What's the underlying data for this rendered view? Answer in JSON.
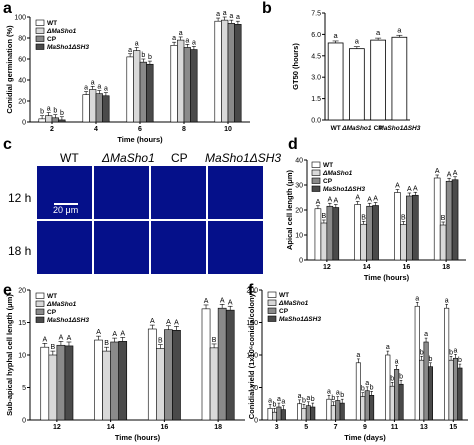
{
  "panel_labels": {
    "a": "a",
    "b": "b",
    "c": "c",
    "d": "d",
    "e": "e",
    "f": "f"
  },
  "micrograph_panel": {
    "columns": [
      "WT",
      "ΔMaSho1",
      "CP",
      "MaSho1ΔSH3"
    ],
    "rows": [
      "12 h",
      "18 h"
    ],
    "scale_bar": "20 μm"
  },
  "series_style": {
    "names": [
      "WT",
      "ΔMaSho1",
      "CP",
      "MaSho1ΔSH3"
    ],
    "fills": [
      "#ffffff",
      "#d9d9d9",
      "#8a8a8a",
      "#4a4a4a"
    ]
  },
  "chart_data": [
    {
      "id": "a",
      "type": "bar",
      "categories": [
        "2",
        "4",
        "6",
        "8",
        "10"
      ],
      "series": [
        {
          "name": "WT",
          "values": [
            3,
            26,
            62,
            73,
            96
          ]
        },
        {
          "name": "ΔMaSho1",
          "values": [
            6,
            31,
            68,
            78,
            97
          ]
        },
        {
          "name": "CP",
          "values": [
            4,
            27,
            57,
            71,
            94
          ]
        },
        {
          "name": "MaSho1ΔSH3",
          "values": [
            2,
            25,
            55,
            69,
            93
          ]
        }
      ],
      "letters": [
        [
          "b",
          "a",
          "a",
          "a",
          "a"
        ],
        [
          "a",
          "a",
          "a",
          "a",
          "a"
        ],
        [
          "b",
          "a",
          "b",
          "a",
          "a"
        ],
        [
          "b",
          "a",
          "b",
          "a",
          "a"
        ]
      ],
      "xlabel": "Time (hours)",
      "ylabel": "Conidial germination (%)",
      "ylim": [
        0,
        100
      ],
      "yticks": [
        0,
        20,
        40,
        60,
        80,
        100
      ],
      "legend": "top-left"
    },
    {
      "id": "b",
      "type": "bar",
      "categories": [
        "WT",
        "ΔMaSho1",
        "CP",
        "MaSho1ΔSH3"
      ],
      "values": [
        5.4,
        5.0,
        5.6,
        5.8
      ],
      "letters": [
        "a",
        "a",
        "a",
        "a"
      ],
      "xlabel": "",
      "ylabel": "GT50 (hours)",
      "ylim": [
        0,
        7.5
      ],
      "yticks": [
        0.0,
        1.5,
        3.0,
        4.5,
        6.0,
        7.5
      ]
    },
    {
      "id": "d",
      "type": "bar",
      "categories": [
        "12",
        "14",
        "16",
        "18"
      ],
      "series": [
        {
          "name": "WT",
          "values": [
            20.5,
            22.2,
            27.0,
            32.8
          ]
        },
        {
          "name": "ΔMaSho1",
          "values": [
            14.8,
            14.3,
            14.2,
            14.0
          ]
        },
        {
          "name": "CP",
          "values": [
            21.5,
            21.5,
            25.6,
            31.5
          ]
        },
        {
          "name": "MaSho1ΔSH3",
          "values": [
            21.0,
            21.8,
            25.9,
            32.1
          ]
        }
      ],
      "letters": [
        [
          "A",
          "A",
          "A",
          "A"
        ],
        [
          "B",
          "B",
          "B",
          "B"
        ],
        [
          "A",
          "A",
          "A",
          "A"
        ],
        [
          "A",
          "A",
          "A",
          "A"
        ]
      ],
      "xlabel": "Time (hours)",
      "ylabel": "Apical cell length (μm)",
      "ylim": [
        0,
        40
      ],
      "yticks": [
        0,
        10,
        20,
        30,
        40
      ],
      "legend": "top-left"
    },
    {
      "id": "e",
      "type": "bar",
      "categories": [
        "12",
        "14",
        "16",
        "18"
      ],
      "series": [
        {
          "name": "WT",
          "values": [
            11.2,
            12.3,
            14.0,
            17.1
          ]
        },
        {
          "name": "ΔMaSho1",
          "values": [
            10.0,
            10.6,
            11.0,
            11.1
          ]
        },
        {
          "name": "CP",
          "values": [
            11.5,
            12.0,
            13.9,
            17.2
          ]
        },
        {
          "name": "MaSho1ΔSH3",
          "values": [
            11.4,
            12.1,
            13.8,
            16.9
          ]
        }
      ],
      "letters": [
        [
          "A",
          "A",
          "A",
          "A"
        ],
        [
          "B",
          "B",
          "B",
          "B"
        ],
        [
          "A",
          "A",
          "A",
          "A"
        ],
        [
          "A",
          "A",
          "A",
          "A"
        ]
      ],
      "xlabel": "Time (hours)",
      "ylabel": "Sub-apical hyphal cell length (μm)",
      "ylim": [
        0,
        20
      ],
      "yticks": [
        0,
        5,
        10,
        15,
        20
      ],
      "legend": "top-left"
    },
    {
      "id": "f",
      "type": "bar",
      "categories": [
        "3",
        "5",
        "7",
        "9",
        "11",
        "13",
        "15"
      ],
      "series": [
        {
          "name": "WT",
          "values": [
            18,
            25,
            32,
            88,
            100,
            175,
            172
          ]
        },
        {
          "name": "ΔMaSho1",
          "values": [
            12,
            18,
            22,
            36,
            52,
            92,
            92
          ]
        },
        {
          "name": "CP",
          "values": [
            20,
            22,
            30,
            45,
            78,
            120,
            95
          ]
        },
        {
          "name": "MaSho1ΔSH3",
          "values": [
            16,
            20,
            26,
            38,
            55,
            82,
            80
          ]
        }
      ],
      "letters": [
        [
          "a",
          "a",
          "a",
          "a",
          "a",
          "a",
          "a"
        ],
        [
          "b",
          "b",
          "b",
          "b",
          "b",
          "b",
          "b"
        ],
        [
          "a",
          "a",
          "a",
          "a",
          "a",
          "a",
          "a"
        ],
        [
          "a",
          "b",
          "b",
          "b",
          "b",
          "b",
          "b"
        ]
      ],
      "xlabel": "Time (days)",
      "ylabel": "Conidial yield (1x10⁶conidia/colony)",
      "ylim": [
        0,
        200
      ],
      "yticks": [
        0,
        50,
        100,
        150,
        200
      ],
      "legend": "top-left"
    }
  ]
}
